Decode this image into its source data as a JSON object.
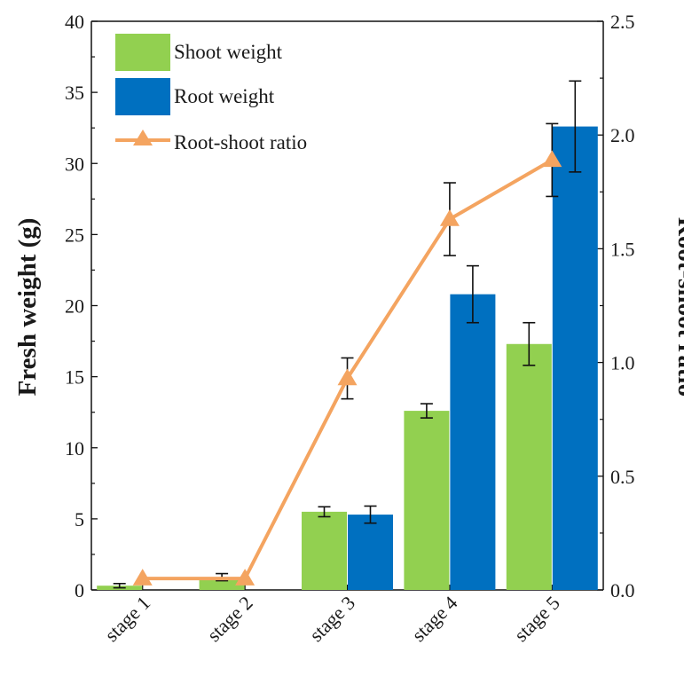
{
  "chart_data": {
    "type": "bar",
    "categories": [
      "stage 1",
      "stage 2",
      "stage 3",
      "stage 4",
      "stage 5"
    ],
    "series": [
      {
        "name": "Shoot weight",
        "kind": "bar",
        "axis": "left",
        "color": "#92d050",
        "values": [
          0.3,
          0.9,
          5.5,
          12.6,
          17.3
        ],
        "errors": [
          0.15,
          0.25,
          0.35,
          0.5,
          1.5
        ]
      },
      {
        "name": "Root weight",
        "kind": "bar",
        "axis": "left",
        "color": "#0070c0",
        "values": [
          0.0,
          0.0,
          5.3,
          20.8,
          32.6
        ],
        "errors": [
          0.0,
          0.0,
          0.6,
          2.0,
          3.2
        ]
      },
      {
        "name": "Root-shoot ratio",
        "kind": "line",
        "axis": "right",
        "color": "#f4a460",
        "values": [
          0.05,
          0.05,
          0.93,
          1.63,
          1.89
        ],
        "errors": [
          0.0,
          0.0,
          0.09,
          0.16,
          0.16
        ]
      }
    ],
    "ylabel": "Fresh weight (g)",
    "ylabel_right": "Root-shoot ratio",
    "ylim": [
      0,
      40
    ],
    "ylim_right": [
      0,
      2.5
    ],
    "yticks": [
      "0",
      "5",
      "10",
      "15",
      "20",
      "25",
      "30",
      "35",
      "40"
    ],
    "yticks_right": [
      "0.0",
      "0.5",
      "1.0",
      "1.5",
      "2.0",
      "2.5"
    ],
    "legend_position": "top-left",
    "grid": false
  }
}
